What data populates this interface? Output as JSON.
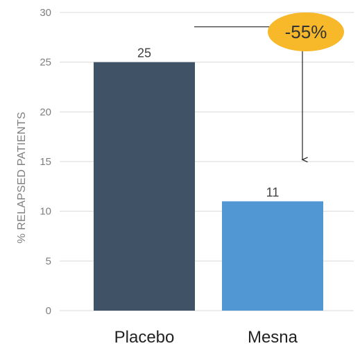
{
  "chart_data": {
    "type": "bar",
    "categories": [
      "Placebo",
      "Mesna"
    ],
    "values": [
      25,
      11
    ],
    "data_labels": [
      "25",
      "11"
    ],
    "ylabel": "% RELAPSED PATIENTS",
    "ylim": [
      0,
      30
    ],
    "yticks": [
      0,
      5,
      10,
      15,
      20,
      25,
      30
    ],
    "grid": true,
    "legend": "none",
    "bar_colors": [
      "#3f5266",
      "#5197d3"
    ],
    "annotation": {
      "text": "-55%",
      "badge_color": "#f7b829",
      "from_category": "Placebo",
      "to_category": "Mesna"
    }
  }
}
